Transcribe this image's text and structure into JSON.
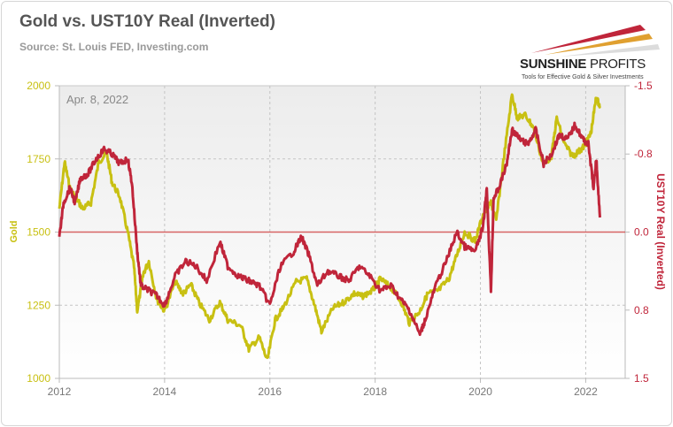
{
  "header": {
    "title": "Gold vs. UST10Y Real (Inverted)",
    "subtitle": "Source: St. Louis FED, Investing.com"
  },
  "logo": {
    "name_bold": "SUNSHINE",
    "name_light": " PROFITS",
    "tagline": "Tools for Effective Gold & Silver Investments"
  },
  "chart_data": {
    "type": "line",
    "title": "Gold vs. UST10Y Real (Inverted)",
    "annotation": "Apr. 8, 2022",
    "xlim": [
      2012,
      2022.75
    ],
    "x_ticks": [
      "2012",
      "2014",
      "2016",
      "2018",
      "2020",
      "2022"
    ],
    "ylabel": "Gold",
    "ylim": [
      1000,
      2000
    ],
    "y_ticks": [
      "1000",
      "1250",
      "1500",
      "1750",
      "2000"
    ],
    "y2label": "UST10Y Real (Inverted)",
    "y2lim": [
      1.5,
      -1.5
    ],
    "y2_inverted": true,
    "y2_ticks": [
      "1.5",
      "0.8",
      "0.0",
      "-0.8",
      "-1.5"
    ],
    "grid": true,
    "colors": {
      "gold": "#c8c012",
      "real": "#c0253a",
      "zero_line": "#d04040"
    },
    "series": [
      {
        "name": "Gold",
        "axis": "left",
        "x": [
          2012.0,
          2012.1,
          2012.2,
          2012.3,
          2012.45,
          2012.6,
          2012.75,
          2012.9,
          2013.0,
          2013.15,
          2013.3,
          2013.42,
          2013.48,
          2013.6,
          2013.7,
          2013.85,
          2014.0,
          2014.2,
          2014.35,
          2014.5,
          2014.65,
          2014.85,
          2015.05,
          2015.2,
          2015.45,
          2015.6,
          2015.8,
          2015.95,
          2016.1,
          2016.25,
          2016.5,
          2016.7,
          2016.85,
          2016.98,
          2017.2,
          2017.4,
          2017.6,
          2017.75,
          2017.95,
          2018.1,
          2018.3,
          2018.5,
          2018.65,
          2018.85,
          2019.0,
          2019.2,
          2019.4,
          2019.55,
          2019.7,
          2019.9,
          2020.05,
          2020.2,
          2020.3,
          2020.45,
          2020.6,
          2020.7,
          2020.85,
          2021.0,
          2021.2,
          2021.35,
          2021.45,
          2021.6,
          2021.75,
          2021.9,
          2022.0,
          2022.1,
          2022.2,
          2022.27
        ],
        "y": [
          1580,
          1740,
          1650,
          1620,
          1580,
          1600,
          1740,
          1770,
          1670,
          1620,
          1500,
          1380,
          1230,
          1360,
          1400,
          1270,
          1230,
          1330,
          1290,
          1320,
          1260,
          1200,
          1260,
          1200,
          1180,
          1100,
          1140,
          1060,
          1200,
          1240,
          1330,
          1340,
          1250,
          1160,
          1240,
          1260,
          1290,
          1280,
          1300,
          1340,
          1310,
          1260,
          1190,
          1230,
          1290,
          1300,
          1340,
          1420,
          1500,
          1470,
          1560,
          1600,
          1540,
          1760,
          1970,
          1890,
          1900,
          1860,
          1730,
          1760,
          1890,
          1800,
          1760,
          1780,
          1800,
          1840,
          1960,
          1930
        ]
      },
      {
        "name": "UST10Y Real (Inverted)",
        "axis": "right",
        "x": [
          2012.0,
          2012.08,
          2012.2,
          2012.3,
          2012.4,
          2012.55,
          2012.7,
          2012.85,
          2013.0,
          2013.15,
          2013.3,
          2013.38,
          2013.48,
          2013.55,
          2013.7,
          2013.85,
          2014.0,
          2014.2,
          2014.4,
          2014.6,
          2014.8,
          2015.05,
          2015.2,
          2015.4,
          2015.6,
          2015.8,
          2016.0,
          2016.2,
          2016.45,
          2016.6,
          2016.75,
          2016.9,
          2017.1,
          2017.3,
          2017.5,
          2017.7,
          2017.9,
          2018.1,
          2018.3,
          2018.5,
          2018.65,
          2018.85,
          2018.95,
          2019.15,
          2019.35,
          2019.55,
          2019.7,
          2019.9,
          2020.05,
          2020.12,
          2020.2,
          2020.25,
          2020.35,
          2020.5,
          2020.6,
          2020.75,
          2020.9,
          2021.05,
          2021.2,
          2021.35,
          2021.5,
          2021.65,
          2021.8,
          2021.95,
          2022.05,
          2022.15,
          2022.2,
          2022.27
        ],
        "y": [
          0.05,
          -0.3,
          -0.45,
          -0.3,
          -0.55,
          -0.6,
          -0.75,
          -0.85,
          -0.8,
          -0.7,
          -0.75,
          -0.5,
          0.2,
          0.55,
          0.6,
          0.65,
          0.75,
          0.45,
          0.3,
          0.35,
          0.5,
          0.1,
          0.35,
          0.45,
          0.5,
          0.55,
          0.75,
          0.35,
          0.2,
          0.05,
          0.25,
          0.55,
          0.4,
          0.45,
          0.5,
          0.35,
          0.45,
          0.6,
          0.55,
          0.7,
          0.8,
          1.05,
          0.9,
          0.55,
          0.3,
          0.0,
          0.15,
          0.2,
          -0.05,
          -0.45,
          0.6,
          -0.35,
          -0.45,
          -0.7,
          -1.05,
          -0.95,
          -0.9,
          -1.05,
          -0.7,
          -0.8,
          -1.0,
          -0.95,
          -1.1,
          -0.95,
          -0.9,
          -0.45,
          -0.75,
          -0.15
        ]
      }
    ]
  }
}
